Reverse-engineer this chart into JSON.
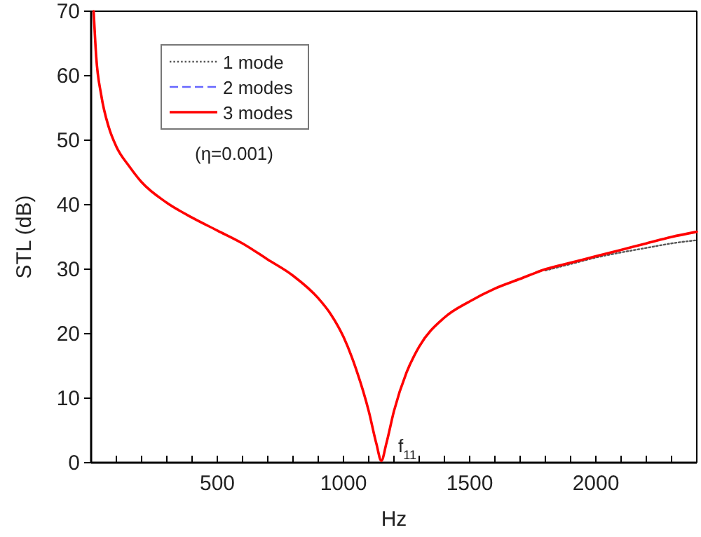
{
  "chart_data": {
    "type": "line",
    "xlabel": "Hz",
    "ylabel": "STL (dB)",
    "xlim": [
      0,
      2400
    ],
    "xticks": [
      {
        "value": 100,
        "label": null
      },
      {
        "value": 200,
        "label": null
      },
      {
        "value": 300,
        "label": null
      },
      {
        "value": 400,
        "label": null
      },
      500,
      {
        "value": 600,
        "label": null
      },
      {
        "value": 700,
        "label": null
      },
      {
        "value": 800,
        "label": null
      },
      {
        "value": 900,
        "label": null
      },
      1000,
      {
        "value": 1100,
        "label": null
      },
      {
        "value": 1200,
        "label": null
      },
      {
        "value": 1300,
        "label": null
      },
      {
        "value": 1400,
        "label": null
      },
      1500,
      {
        "value": 1600,
        "label": null
      },
      {
        "value": 1700,
        "label": null
      },
      {
        "value": 1800,
        "label": null
      },
      {
        "value": 1900,
        "label": null
      },
      2000,
      {
        "value": 2100,
        "label": null
      },
      {
        "value": 2200,
        "label": null
      },
      {
        "value": 2300,
        "label": null
      }
    ],
    "ylim": [
      0,
      70
    ],
    "yticks": [
      0,
      10,
      20,
      30,
      40,
      50,
      60,
      70
    ],
    "grid": false,
    "legend": "top left",
    "x": [
      10,
      20,
      40,
      70,
      100,
      150,
      200,
      300,
      400,
      500,
      600,
      700,
      800,
      900,
      950,
      1000,
      1050,
      1100,
      1130,
      1150,
      1170,
      1200,
      1250,
      1300,
      1400,
      1500,
      1600,
      1700,
      1800,
      1900,
      2000,
      2100,
      2200,
      2300,
      2400
    ],
    "series": [
      {
        "name": "1 mode",
        "color": "#555555",
        "line_style": "dotted",
        "values": [
          null,
          null,
          null,
          null,
          null,
          null,
          null,
          null,
          null,
          null,
          null,
          null,
          null,
          null,
          null,
          null,
          null,
          null,
          null,
          null,
          null,
          null,
          null,
          null,
          null,
          null,
          null,
          null,
          29.8,
          30.8,
          31.8,
          32.6,
          33.3,
          34,
          34.5
        ]
      },
      {
        "name": "2 modes",
        "color": "#6666ff",
        "line_style": "dashed",
        "values": [
          null,
          null,
          null,
          null,
          null,
          null,
          null,
          null,
          null,
          null,
          null,
          null,
          null,
          null,
          null,
          null,
          null,
          null,
          null,
          null,
          null,
          null,
          null,
          null,
          null,
          null,
          null,
          null,
          null,
          null,
          null,
          null,
          null,
          null,
          null
        ]
      },
      {
        "name": "3 modes",
        "color": "#ff0000",
        "line_style": "solid",
        "values": [
          70,
          63,
          57,
          52,
          49,
          46,
          43.5,
          40.3,
          38,
          36,
          34,
          31.5,
          29,
          25.5,
          23,
          19.5,
          14.5,
          8,
          3,
          0.3,
          3,
          8,
          14,
          18,
          22.5,
          25,
          27,
          28.5,
          30,
          31,
          32,
          33,
          34,
          35,
          35.8
        ]
      }
    ],
    "annotations": [
      "(η=0.001)",
      {
        "text": "f$_{11}$",
        "x": 1150,
        "y": 0.3
      }
    ]
  }
}
